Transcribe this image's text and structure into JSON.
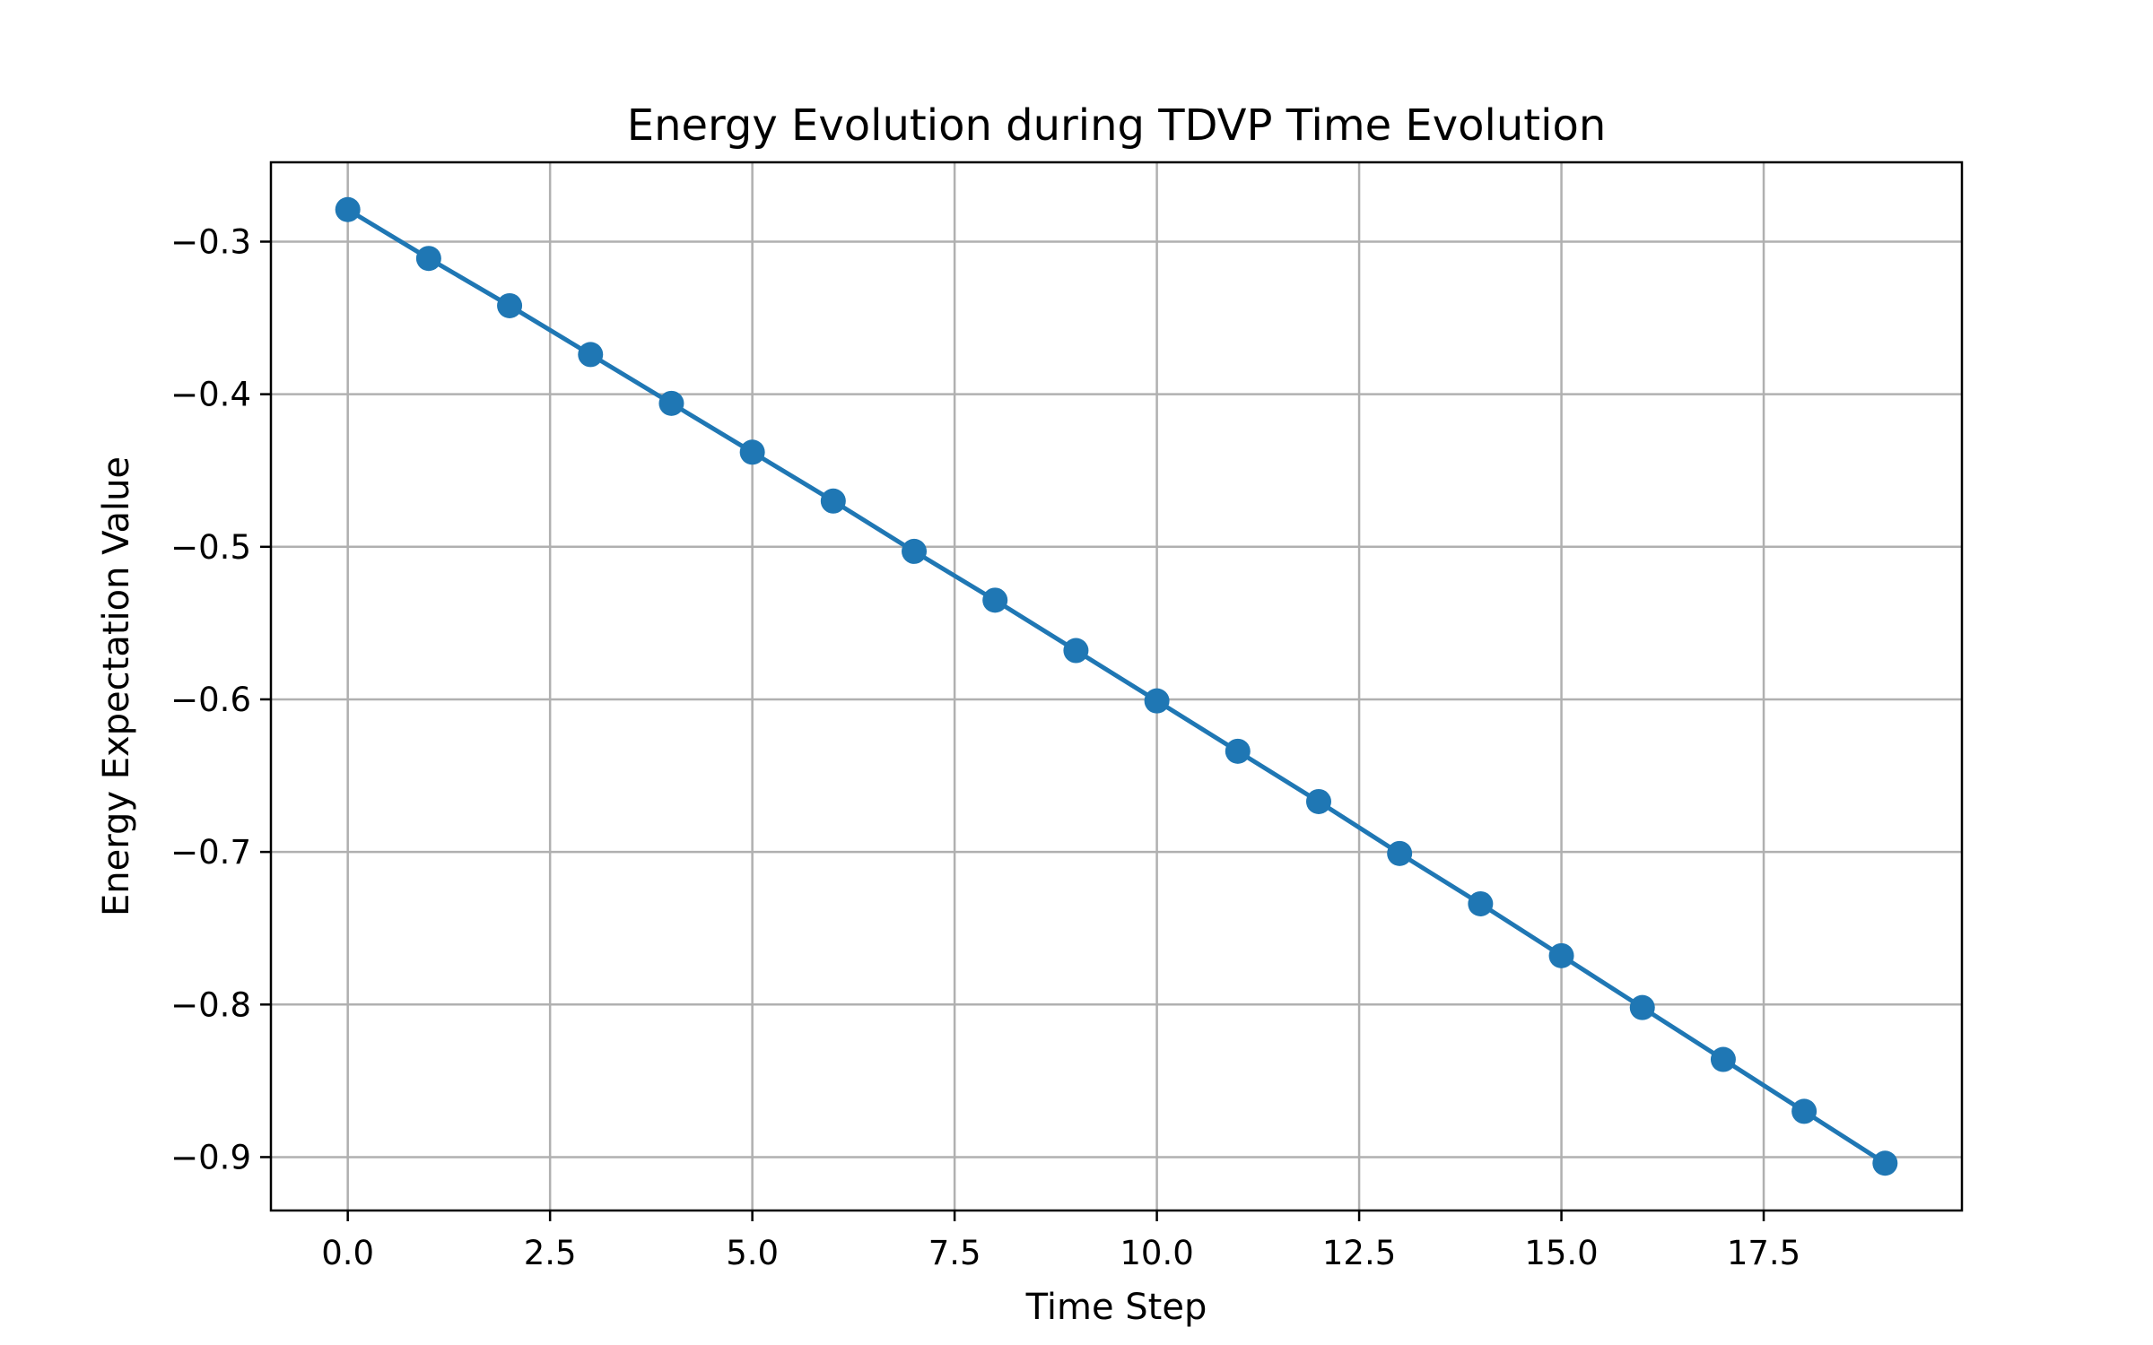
{
  "chart_data": {
    "type": "line",
    "title": "Energy Evolution during TDVP Time Evolution",
    "xlabel": "Time Step",
    "ylabel": "Energy Expectation Value",
    "xlim": [
      -0.95,
      19.95
    ],
    "ylim": [
      -0.935,
      -0.248
    ],
    "xticks": [
      0.0,
      2.5,
      5.0,
      7.5,
      10.0,
      12.5,
      15.0,
      17.5
    ],
    "xtick_labels": [
      "0.0",
      "2.5",
      "5.0",
      "7.5",
      "10.0",
      "12.5",
      "15.0",
      "17.5"
    ],
    "yticks": [
      -0.3,
      -0.4,
      -0.5,
      -0.6,
      -0.7,
      -0.8,
      -0.9
    ],
    "ytick_labels": [
      "−0.3",
      "−0.4",
      "−0.5",
      "−0.6",
      "−0.7",
      "−0.8",
      "−0.9"
    ],
    "grid": true,
    "marker": "circle",
    "color": "#1f77b4",
    "series": [
      {
        "x": [
          0,
          1,
          2,
          3,
          4,
          5,
          6,
          7,
          8,
          9,
          10,
          11,
          12,
          13,
          14,
          15,
          16,
          17,
          18,
          19
        ],
        "values": [
          -0.279,
          -0.311,
          -0.342,
          -0.374,
          -0.406,
          -0.438,
          -0.47,
          -0.503,
          -0.535,
          -0.568,
          -0.601,
          -0.634,
          -0.667,
          -0.701,
          -0.734,
          -0.768,
          -0.802,
          -0.836,
          -0.87,
          -0.904
        ]
      }
    ]
  }
}
